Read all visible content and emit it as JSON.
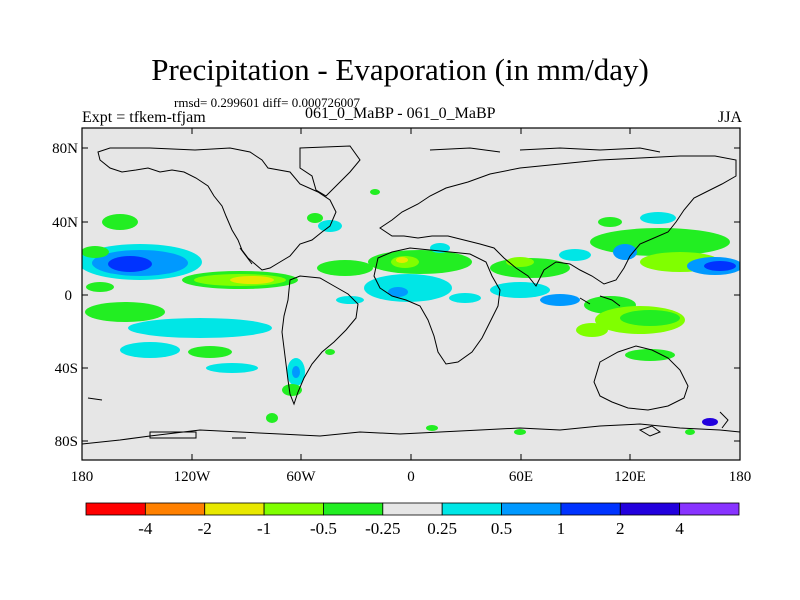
{
  "header": {
    "title": "Precipitation - Evaporation (in mm/day)",
    "stats": "rmsd= 0.299601 diff= 0.000726007",
    "experiment": "Expt = tfkem-tfjam",
    "cases": "061_0_MaBP - 061_0_MaBP",
    "season": "JJA"
  },
  "map_axes": {
    "lat_ticks": [
      "80N",
      "40N",
      "0",
      "40S",
      "80S"
    ],
    "lon_ticks": [
      "180",
      "120W",
      "60W",
      "0",
      "60E",
      "120E",
      "180"
    ]
  },
  "colorbar": {
    "colors": [
      "#ff0000",
      "#ff8000",
      "#e8e800",
      "#80ff00",
      "#22ee22",
      "#e6e6e6",
      "#00e6e6",
      "#0099ff",
      "#0033ff",
      "#2200dd",
      "#8833ff"
    ],
    "labels": [
      "-4",
      "-2",
      "-1",
      "-0.5",
      "-0.25",
      "0.25",
      "0.5",
      "1",
      "2",
      "4"
    ]
  },
  "colors": {
    "background_field": "#e6e6e6",
    "coastline": "#000000"
  }
}
